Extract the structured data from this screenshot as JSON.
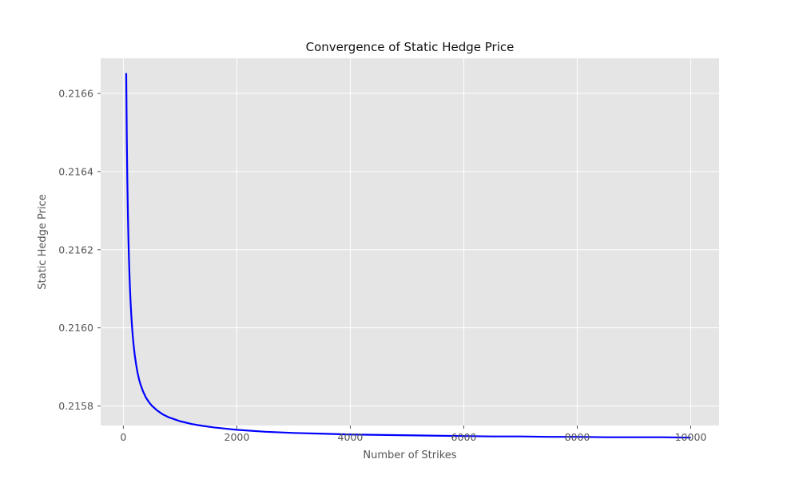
{
  "chart_data": {
    "type": "line",
    "title": "Convergence of Static Hedge Price",
    "xlabel": "Number of Strikes",
    "ylabel": "Static Hedge Price",
    "xlim": [
      -400,
      10500
    ],
    "ylim": [
      0.21575,
      0.21669
    ],
    "xticks": [
      0,
      2000,
      4000,
      6000,
      8000,
      10000
    ],
    "xtick_labels": [
      "0",
      "2000",
      "4000",
      "6000",
      "8000",
      "10000"
    ],
    "yticks": [
      0.2158,
      0.216,
      0.2162,
      0.2164,
      0.2166
    ],
    "ytick_labels": [
      "0.2158",
      "0.2160",
      "0.2162",
      "0.2164",
      "0.2166"
    ],
    "grid": true,
    "style": "ggplot",
    "colors": {
      "plot_background": "#e5e5e5",
      "grid": "#ffffff",
      "line": "#0000ff",
      "tick_label": "#555555",
      "title": "#111111"
    },
    "series": [
      {
        "color": "#0000ff",
        "x": [
          50,
          60,
          70,
          80,
          90,
          100,
          110,
          120,
          130,
          140,
          150,
          165,
          180,
          200,
          225,
          250,
          275,
          300,
          350,
          400,
          450,
          500,
          600,
          700,
          800,
          900,
          1000,
          1200,
          1400,
          1600,
          1800,
          2000,
          2500,
          3000,
          3500,
          4000,
          4500,
          5000,
          5500,
          6000,
          6500,
          7000,
          7500,
          8000,
          8500,
          9000,
          9500,
          10000
        ],
        "y": [
          0.216652,
          0.216491,
          0.216376,
          0.21629,
          0.216223,
          0.21617,
          0.216126,
          0.216089,
          0.216058,
          0.216032,
          0.216009,
          0.21598,
          0.215957,
          0.215931,
          0.215906,
          0.215885,
          0.215869,
          0.215856,
          0.215836,
          0.215821,
          0.21581,
          0.215801,
          0.215788,
          0.215778,
          0.215771,
          0.215766,
          0.215761,
          0.215754,
          0.215749,
          0.215745,
          0.215742,
          0.215739,
          0.215734,
          0.215731,
          0.215729,
          0.215727,
          0.215726,
          0.215725,
          0.215724,
          0.215723,
          0.215722,
          0.215722,
          0.215721,
          0.215721,
          0.21572,
          0.21572,
          0.21572,
          0.215719
        ]
      }
    ]
  }
}
